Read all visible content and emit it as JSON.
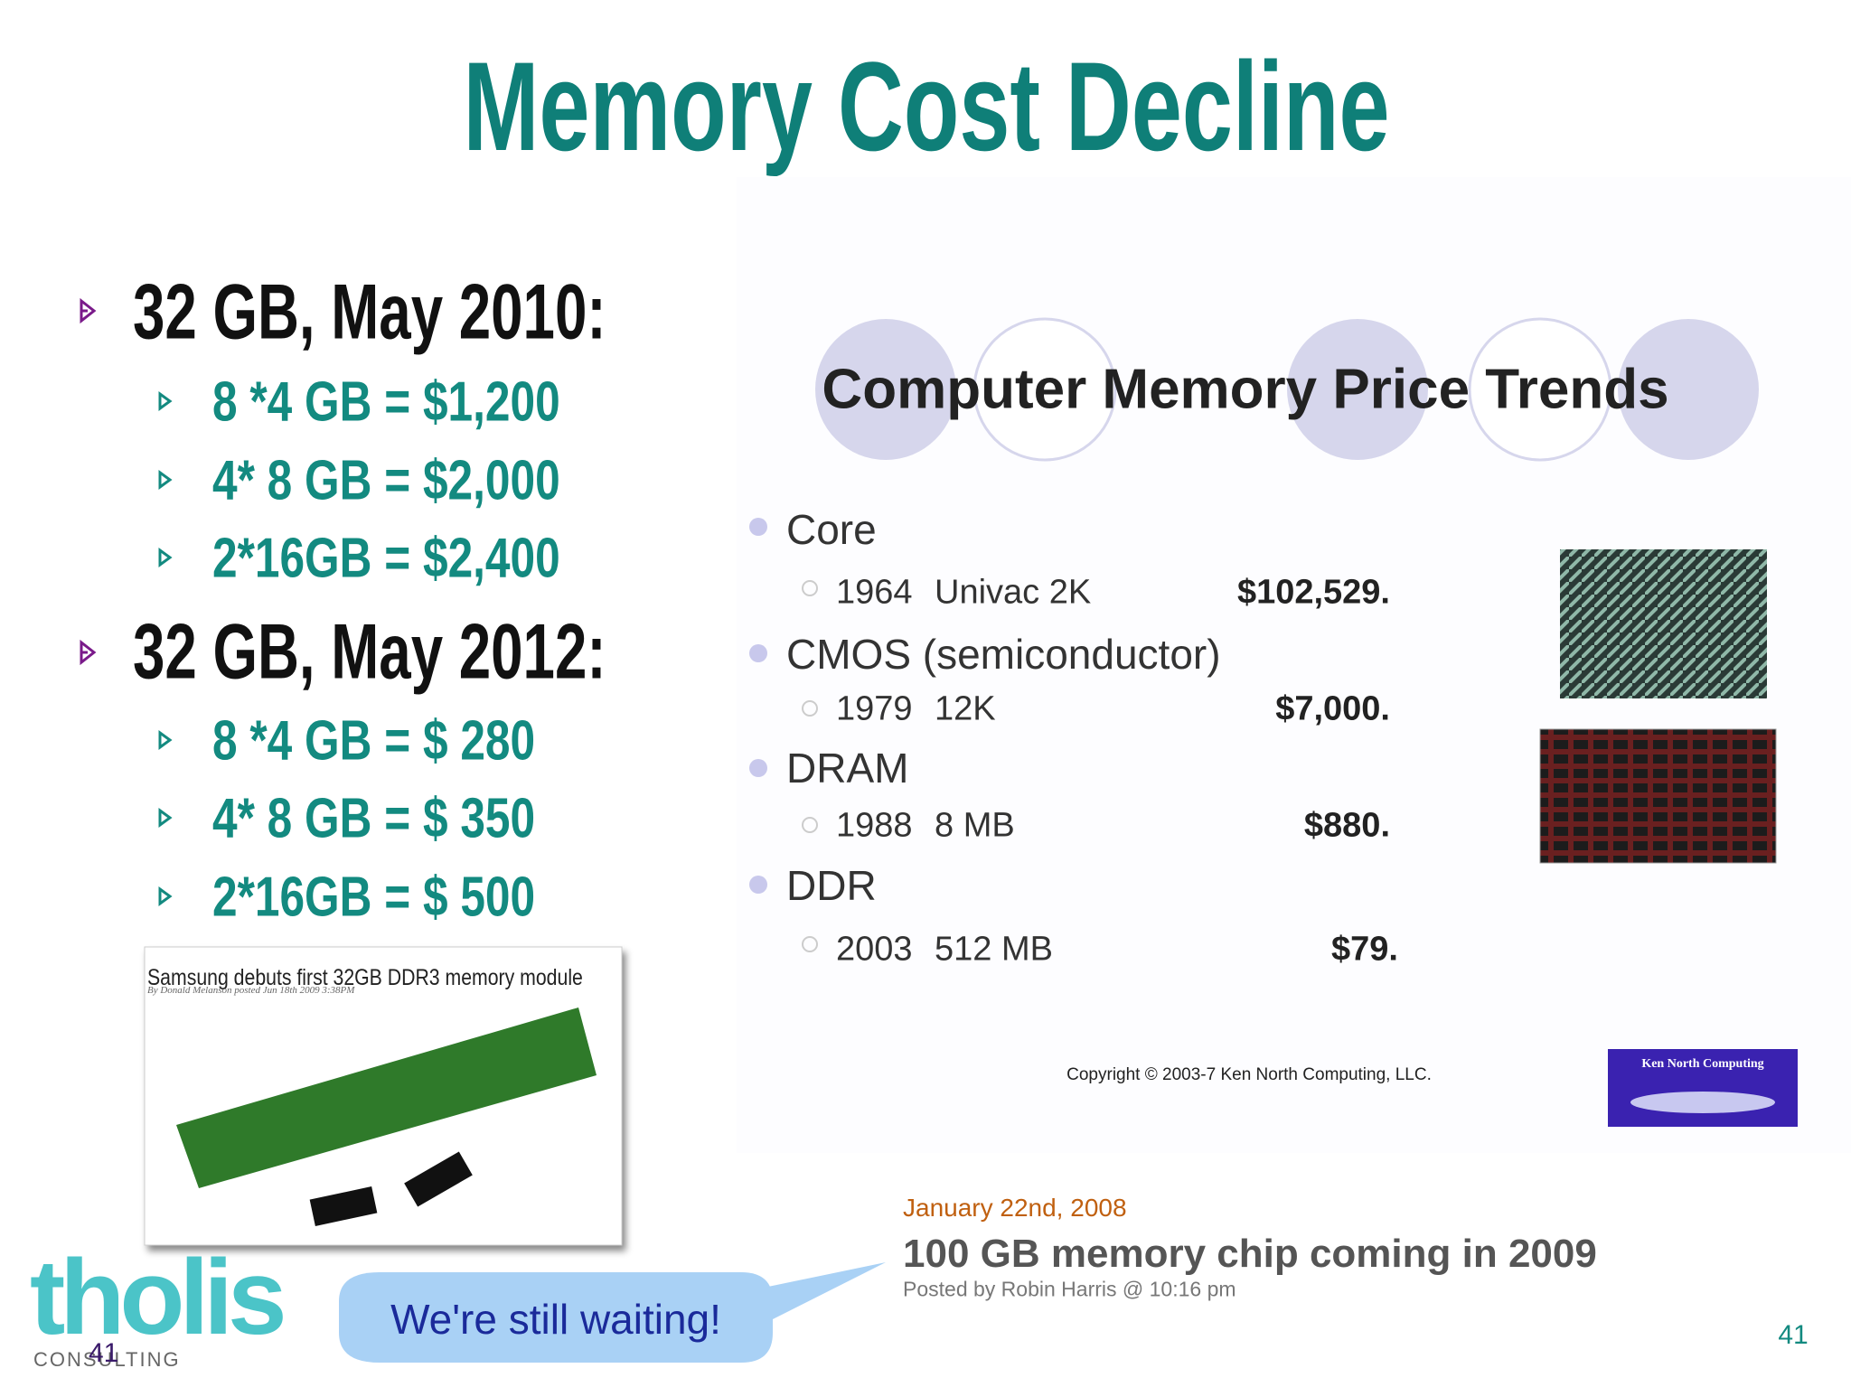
{
  "title": "Memory Cost Decline",
  "bullets": [
    {
      "heading": "32 GB, May 2010:",
      "items": [
        "8 *4 GB = $1,200",
        "4* 8 GB = $2,000",
        "2*16GB = $2,400"
      ]
    },
    {
      "heading": "32 GB, May 2012:",
      "items": [
        "8 *4 GB = $ 280",
        "4* 8 GB = $ 350",
        "2*16GB = $ 500"
      ]
    }
  ],
  "news_clip": {
    "headline": "Samsung debuts first 32GB DDR3 memory module",
    "byline": "By Donald Melanson",
    "posted": "posted Jun 18th 2009 3:38PM"
  },
  "price_trends": {
    "title": "Computer Memory Price Trends",
    "rows": [
      {
        "technology": "Core",
        "year": "1964",
        "item": "Univac 2K",
        "price": "$102,529."
      },
      {
        "technology": "CMOS (semiconductor)",
        "year": "1979",
        "item": "12K",
        "price": "$7,000."
      },
      {
        "technology": "DRAM",
        "year": "1988",
        "item": "8 MB",
        "price": "$880."
      },
      {
        "technology": "DDR",
        "year": "2003",
        "item": "512 MB",
        "price": "$79."
      }
    ],
    "copyright": "Copyright © 2003-7 Ken North Computing, LLC.",
    "logo": "Ken North Computing"
  },
  "blog_clip": {
    "date": "January 22nd, 2008",
    "headline": "100 GB memory chip coming in 2009",
    "posted": "Posted by Robin Harris @ 10:16 pm"
  },
  "callout": "We're still waiting!",
  "company_logo": {
    "name": "tholis",
    "tagline": "CONSULTING"
  },
  "page_number": "41"
}
